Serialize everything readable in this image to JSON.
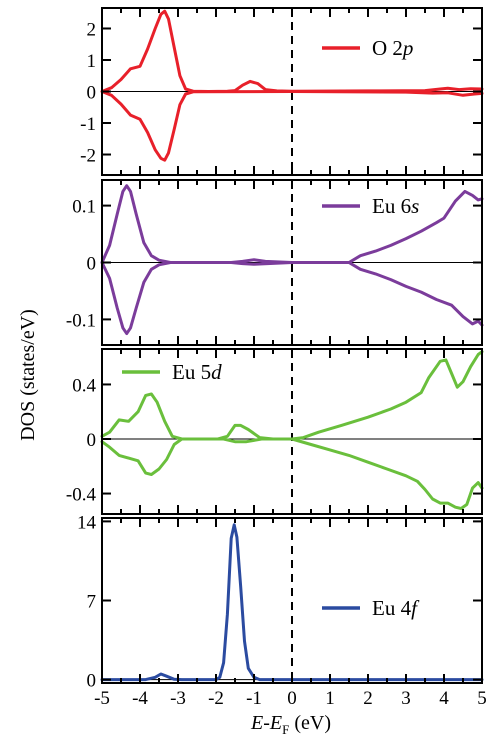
{
  "chart_data": {
    "type": "line",
    "x_label_parts": [
      "E",
      "-",
      "E",
      "F",
      " (eV)"
    ],
    "y_label": "DOS (states/eV)",
    "x_range": [
      -5,
      5
    ],
    "x_ticks": [
      "-5",
      "-4",
      "-3",
      "-2",
      "-1",
      "0",
      "1",
      "2",
      "3",
      "4",
      "5"
    ],
    "fermi_level": 0,
    "panels": [
      {
        "name": "O 2p",
        "legend_prefix": "O 2",
        "legend_italic": "p",
        "color": "#e8202a",
        "y_range": [
          -2.65,
          2.65
        ],
        "y_ticks": [
          -2,
          -1,
          0,
          1,
          2
        ],
        "y_tick_labels": [
          "-2",
          "-1",
          "0",
          "1",
          "2"
        ],
        "spin_polarized": true,
        "up": [
          [
            -5,
            0.0
          ],
          [
            -4.75,
            0.12
          ],
          [
            -4.5,
            0.38
          ],
          [
            -4.25,
            0.72
          ],
          [
            -4.0,
            0.8
          ],
          [
            -3.8,
            1.35
          ],
          [
            -3.6,
            2.0
          ],
          [
            -3.45,
            2.45
          ],
          [
            -3.35,
            2.55
          ],
          [
            -3.25,
            2.3
          ],
          [
            -3.1,
            1.4
          ],
          [
            -2.95,
            0.5
          ],
          [
            -2.8,
            0.08
          ],
          [
            -2.6,
            0.01
          ],
          [
            -2.2,
            0.0
          ],
          [
            -1.7,
            0.01
          ],
          [
            -1.5,
            0.03
          ],
          [
            -1.3,
            0.2
          ],
          [
            -1.1,
            0.32
          ],
          [
            -0.9,
            0.25
          ],
          [
            -0.7,
            0.06
          ],
          [
            -0.4,
            0.02
          ],
          [
            0,
            0.01
          ],
          [
            2,
            0.02
          ],
          [
            3.5,
            0.03
          ],
          [
            3.9,
            0.08
          ],
          [
            4.1,
            0.1
          ],
          [
            4.4,
            0.06
          ],
          [
            4.7,
            0.09
          ],
          [
            5,
            0.08
          ]
        ],
        "down": [
          [
            -5,
            0.0
          ],
          [
            -4.75,
            -0.12
          ],
          [
            -4.5,
            -0.4
          ],
          [
            -4.25,
            -0.75
          ],
          [
            -4.0,
            -0.88
          ],
          [
            -3.8,
            -1.3
          ],
          [
            -3.6,
            -1.85
          ],
          [
            -3.45,
            -2.12
          ],
          [
            -3.35,
            -2.18
          ],
          [
            -3.25,
            -1.95
          ],
          [
            -3.1,
            -1.2
          ],
          [
            -2.95,
            -0.42
          ],
          [
            -2.8,
            -0.08
          ],
          [
            -2.6,
            -0.01
          ],
          [
            0,
            0.0
          ],
          [
            3,
            -0.02
          ],
          [
            3.7,
            -0.05
          ],
          [
            4.1,
            -0.04
          ],
          [
            4.5,
            -0.12
          ],
          [
            4.8,
            -0.08
          ],
          [
            5,
            -0.06
          ]
        ]
      },
      {
        "name": "Eu 6s",
        "legend_prefix": "Eu 6",
        "legend_italic": "s",
        "color": "#7b3c9b",
        "y_range": [
          -0.145,
          0.145
        ],
        "y_ticks": [
          -0.1,
          0,
          0.1
        ],
        "y_tick_labels": [
          "-0.1",
          "0",
          "0.1"
        ],
        "spin_polarized": true,
        "up": [
          [
            -5,
            0.0
          ],
          [
            -4.8,
            0.03
          ],
          [
            -4.6,
            0.085
          ],
          [
            -4.45,
            0.125
          ],
          [
            -4.35,
            0.135
          ],
          [
            -4.25,
            0.125
          ],
          [
            -4.1,
            0.085
          ],
          [
            -3.9,
            0.035
          ],
          [
            -3.7,
            0.012
          ],
          [
            -3.5,
            0.004
          ],
          [
            -3.2,
            0.0
          ],
          [
            -1.6,
            0.0
          ],
          [
            -1.3,
            0.002
          ],
          [
            -1.0,
            0.005
          ],
          [
            -0.7,
            0.002
          ],
          [
            0,
            0.0
          ],
          [
            1.5,
            0.0
          ],
          [
            1.8,
            0.012
          ],
          [
            2.2,
            0.02
          ],
          [
            2.6,
            0.03
          ],
          [
            3.0,
            0.042
          ],
          [
            3.4,
            0.055
          ],
          [
            3.8,
            0.07
          ],
          [
            4.0,
            0.078
          ],
          [
            4.3,
            0.108
          ],
          [
            4.55,
            0.125
          ],
          [
            4.75,
            0.118
          ],
          [
            4.9,
            0.11
          ],
          [
            5,
            0.112
          ]
        ],
        "down": [
          [
            -5,
            0.0
          ],
          [
            -4.8,
            -0.028
          ],
          [
            -4.6,
            -0.08
          ],
          [
            -4.45,
            -0.115
          ],
          [
            -4.35,
            -0.125
          ],
          [
            -4.25,
            -0.115
          ],
          [
            -4.1,
            -0.08
          ],
          [
            -3.9,
            -0.035
          ],
          [
            -3.7,
            -0.012
          ],
          [
            -3.5,
            -0.004
          ],
          [
            -3.2,
            0.0
          ],
          [
            -1.6,
            0.0
          ],
          [
            -1.3,
            -0.002
          ],
          [
            -1.0,
            -0.003
          ],
          [
            0,
            0.0
          ],
          [
            1.5,
            0.0
          ],
          [
            1.8,
            -0.012
          ],
          [
            2.2,
            -0.02
          ],
          [
            2.6,
            -0.03
          ],
          [
            3.0,
            -0.042
          ],
          [
            3.4,
            -0.052
          ],
          [
            3.8,
            -0.065
          ],
          [
            4.2,
            -0.075
          ],
          [
            4.5,
            -0.095
          ],
          [
            4.75,
            -0.108
          ],
          [
            4.9,
            -0.103
          ],
          [
            5,
            -0.11
          ]
        ]
      },
      {
        "name": "Eu 5d",
        "legend_prefix": "Eu 5",
        "legend_italic": "d",
        "color": "#6abf3c",
        "y_range": [
          -0.55,
          0.66
        ],
        "y_ticks": [
          -0.4,
          0,
          0.4
        ],
        "y_tick_labels": [
          "-0.4",
          "0",
          "0.4"
        ],
        "spin_polarized": true,
        "up": [
          [
            -5,
            0.02
          ],
          [
            -4.8,
            0.05
          ],
          [
            -4.55,
            0.14
          ],
          [
            -4.3,
            0.13
          ],
          [
            -4.05,
            0.2
          ],
          [
            -3.85,
            0.32
          ],
          [
            -3.7,
            0.33
          ],
          [
            -3.55,
            0.27
          ],
          [
            -3.35,
            0.13
          ],
          [
            -3.15,
            0.02
          ],
          [
            -2.9,
            0.0
          ],
          [
            -1.95,
            0.0
          ],
          [
            -1.7,
            0.02
          ],
          [
            -1.5,
            0.1
          ],
          [
            -1.35,
            0.1
          ],
          [
            -1.15,
            0.07
          ],
          [
            -0.85,
            0.01
          ],
          [
            -0.5,
            0.0
          ],
          [
            0,
            0.0
          ],
          [
            0.3,
            0.01
          ],
          [
            0.7,
            0.05
          ],
          [
            1.3,
            0.1
          ],
          [
            2.0,
            0.16
          ],
          [
            2.6,
            0.22
          ],
          [
            3.0,
            0.27
          ],
          [
            3.4,
            0.34
          ],
          [
            3.6,
            0.45
          ],
          [
            3.9,
            0.57
          ],
          [
            4.05,
            0.58
          ],
          [
            4.2,
            0.48
          ],
          [
            4.35,
            0.38
          ],
          [
            4.5,
            0.42
          ],
          [
            4.7,
            0.53
          ],
          [
            4.9,
            0.62
          ],
          [
            5,
            0.64
          ]
        ],
        "down": [
          [
            -5,
            -0.02
          ],
          [
            -4.8,
            -0.06
          ],
          [
            -4.55,
            -0.12
          ],
          [
            -4.3,
            -0.14
          ],
          [
            -4.05,
            -0.16
          ],
          [
            -3.85,
            -0.25
          ],
          [
            -3.7,
            -0.26
          ],
          [
            -3.5,
            -0.22
          ],
          [
            -3.3,
            -0.15
          ],
          [
            -3.1,
            -0.04
          ],
          [
            -2.9,
            0.0
          ],
          [
            -1.8,
            0.0
          ],
          [
            -1.5,
            -0.02
          ],
          [
            -1.2,
            -0.02
          ],
          [
            -0.8,
            0.0
          ],
          [
            0,
            0.0
          ],
          [
            0.5,
            -0.04
          ],
          [
            1.0,
            -0.08
          ],
          [
            1.5,
            -0.12
          ],
          [
            2.0,
            -0.17
          ],
          [
            2.5,
            -0.22
          ],
          [
            3.0,
            -0.27
          ],
          [
            3.3,
            -0.31
          ],
          [
            3.5,
            -0.37
          ],
          [
            3.7,
            -0.44
          ],
          [
            3.9,
            -0.47
          ],
          [
            4.1,
            -0.47
          ],
          [
            4.3,
            -0.5
          ],
          [
            4.45,
            -0.51
          ],
          [
            4.6,
            -0.48
          ],
          [
            4.75,
            -0.36
          ],
          [
            4.9,
            -0.32
          ],
          [
            5,
            -0.36
          ]
        ]
      },
      {
        "name": "Eu 4f",
        "legend_prefix": "Eu 4",
        "legend_italic": "f",
        "color": "#2b4ba0",
        "y_range": [
          -0.3,
          14.3
        ],
        "y_ticks": [
          0,
          7,
          14
        ],
        "y_tick_labels": [
          "0",
          "7",
          "14"
        ],
        "spin_polarized": false,
        "up": [
          [
            -5,
            0.0
          ],
          [
            -3.85,
            0.0
          ],
          [
            -3.6,
            0.2
          ],
          [
            -3.45,
            0.5
          ],
          [
            -3.3,
            0.3
          ],
          [
            -3.1,
            0.03
          ],
          [
            -2.9,
            0.0
          ],
          [
            -2.0,
            0.0
          ],
          [
            -1.9,
            0.2
          ],
          [
            -1.8,
            1.5
          ],
          [
            -1.7,
            5.8
          ],
          [
            -1.6,
            12.5
          ],
          [
            -1.52,
            13.7
          ],
          [
            -1.45,
            12.6
          ],
          [
            -1.35,
            8.2
          ],
          [
            -1.25,
            3.4
          ],
          [
            -1.15,
            1.0
          ],
          [
            -1.0,
            0.2
          ],
          [
            -0.85,
            0.0
          ],
          [
            5,
            0.0
          ]
        ]
      }
    ]
  }
}
